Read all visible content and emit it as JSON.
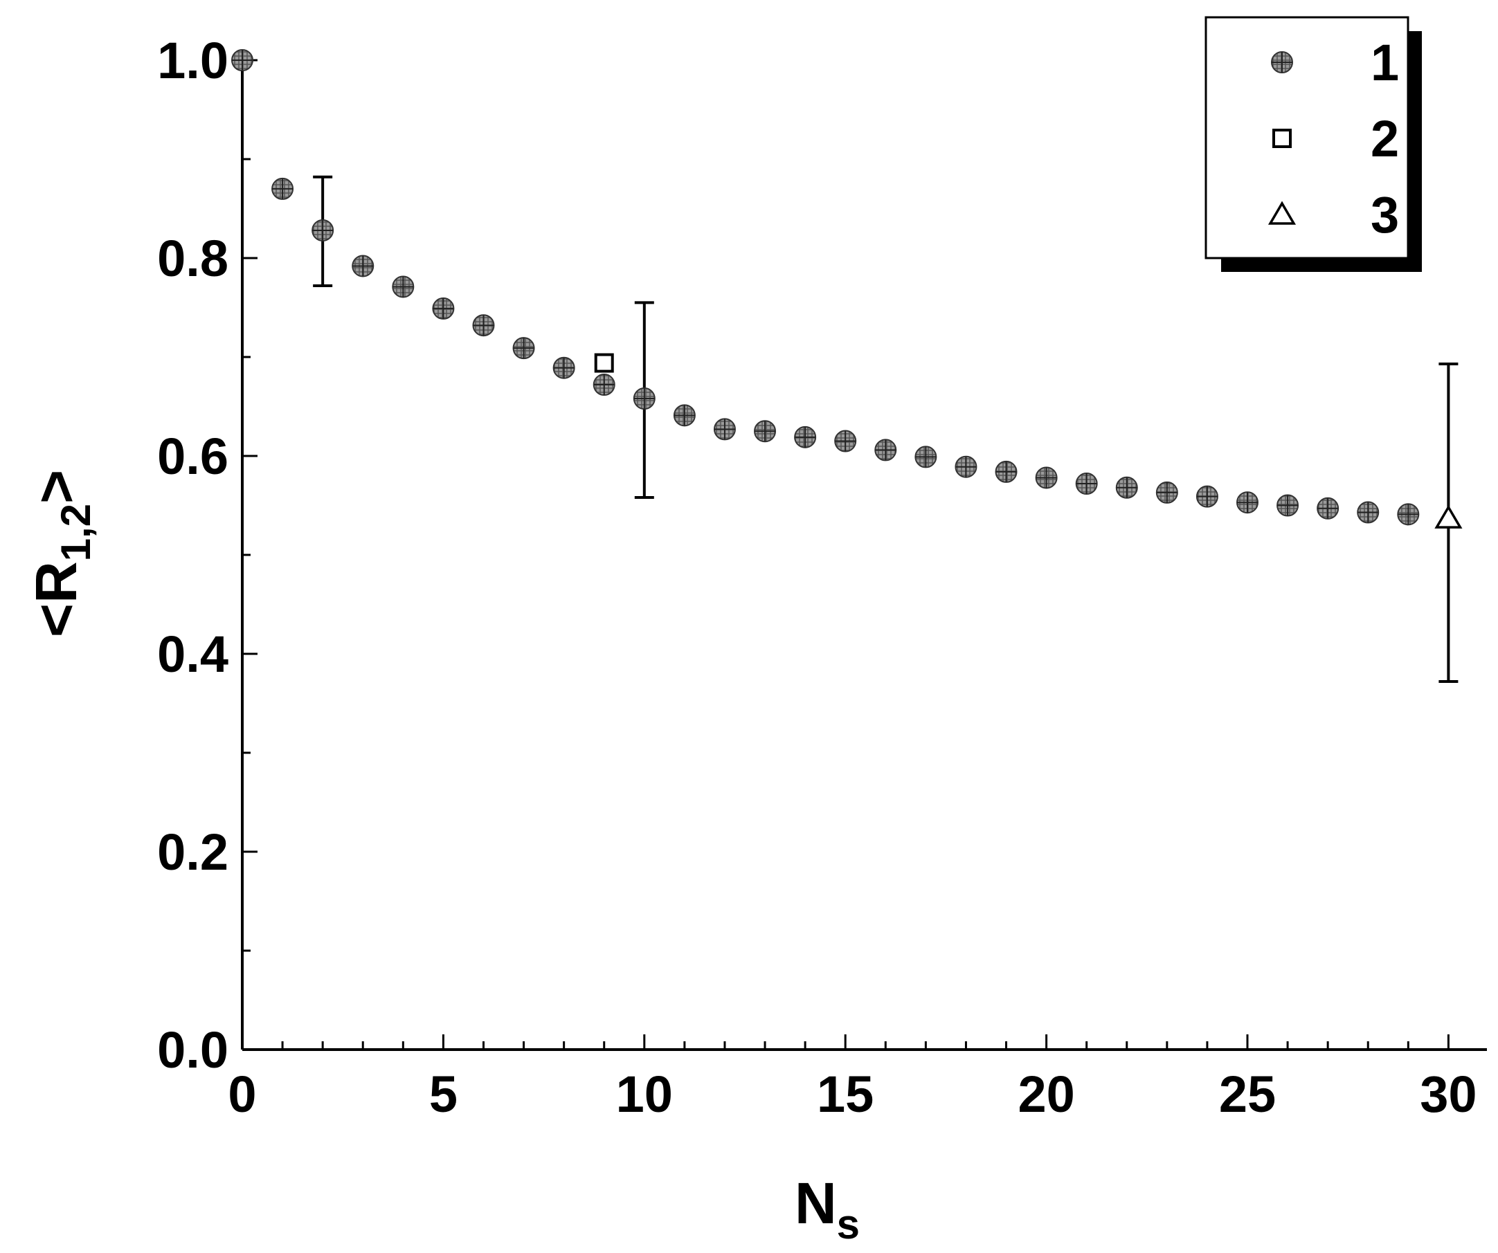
{
  "chart_data": {
    "type": "scatter",
    "xlabel": {
      "main": "N",
      "sub": "s"
    },
    "ylabel": {
      "prefix": "<R",
      "sub": "1,2",
      "suffix": ">"
    },
    "xlim": [
      0,
      31
    ],
    "ylim": [
      0,
      1.0
    ],
    "x_ticks": [
      "0",
      "5",
      "10",
      "15",
      "20",
      "25",
      "30"
    ],
    "y_ticks": [
      "0.0",
      "0.2",
      "0.4",
      "0.6",
      "0.8",
      "1.0"
    ],
    "grid": false,
    "legend": {
      "position": "top-right",
      "entries": [
        {
          "label": "1",
          "marker": "filled-circle"
        },
        {
          "label": "2",
          "marker": "open-square"
        },
        {
          "label": "3",
          "marker": "open-triangle"
        }
      ]
    },
    "series": [
      {
        "name": "1",
        "marker": "filled-circle",
        "x": [
          0,
          1,
          2,
          3,
          4,
          5,
          6,
          7,
          8,
          9,
          10,
          11,
          12,
          13,
          14,
          15,
          16,
          17,
          18,
          19,
          20,
          21,
          22,
          23,
          24,
          25,
          26,
          27,
          28,
          29
        ],
        "y": [
          1.0,
          0.87,
          0.828,
          0.792,
          0.771,
          0.749,
          0.732,
          0.709,
          0.689,
          0.672,
          0.658,
          0.641,
          0.627,
          0.625,
          0.619,
          0.615,
          0.606,
          0.599,
          0.589,
          0.584,
          0.578,
          0.572,
          0.568,
          0.563,
          0.559,
          0.553,
          0.55,
          0.547,
          0.543,
          0.541
        ]
      },
      {
        "name": "2",
        "marker": "open-square",
        "x": [
          9
        ],
        "y": [
          0.694
        ]
      },
      {
        "name": "3",
        "marker": "open-triangle",
        "x": [
          30
        ],
        "y": [
          0.537
        ]
      }
    ],
    "error_bars": [
      {
        "x": 2,
        "low": 0.772,
        "high": 0.882
      },
      {
        "x": 10,
        "low": 0.558,
        "high": 0.755
      },
      {
        "x": 30,
        "low": 0.372,
        "high": 0.693
      }
    ],
    "colors": {
      "circle_fill": "#8a8a8a",
      "axis": "#000000",
      "background": "#ffffff"
    }
  }
}
